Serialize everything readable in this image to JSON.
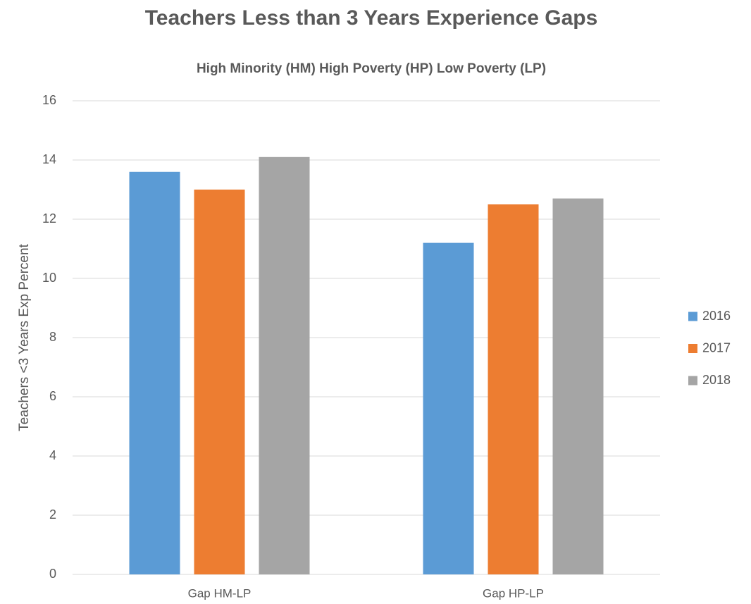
{
  "chart_data": {
    "type": "bar",
    "title": "Teachers Less than 3 Years Experience Gaps",
    "subtitle": "High Minority (HM) High Poverty (HP) Low Poverty (LP)",
    "y_label": "Teachers <3 Years Exp Percent",
    "categories": [
      "Gap HM-LP",
      "Gap HP-LP"
    ],
    "series": [
      {
        "name": "2016",
        "color": "#5b9bd5",
        "values": [
          13.6,
          11.2
        ]
      },
      {
        "name": "2017",
        "color": "#ed7d31",
        "values": [
          13.0,
          12.5
        ]
      },
      {
        "name": "2018",
        "color": "#a5a5a5",
        "values": [
          14.1,
          12.7
        ]
      }
    ],
    "ylim": [
      0,
      16
    ],
    "yticks": [
      0,
      2,
      4,
      6,
      8,
      10,
      12,
      14,
      16
    ],
    "grid": true,
    "legend": "right"
  }
}
